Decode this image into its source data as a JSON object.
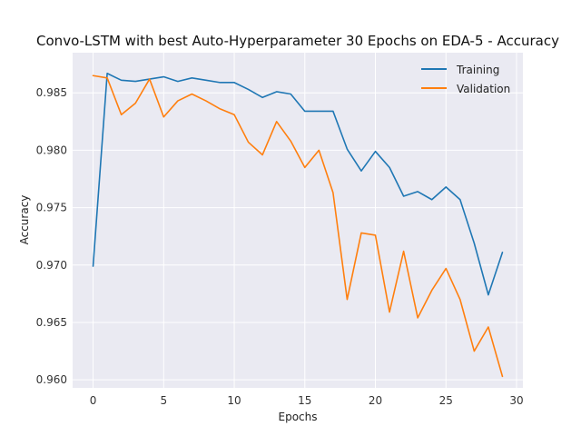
{
  "chart_data": {
    "type": "line",
    "title": "Convo-LSTM with best Auto-Hyperparameter 30 Epochs on EDA-5 - Accuracy",
    "xlabel": "Epochs",
    "ylabel": "Accuracy",
    "xlim": [
      -1.45,
      30.45
    ],
    "ylim": [
      0.9593,
      0.9885
    ],
    "xticks": [
      0,
      5,
      10,
      15,
      20,
      25,
      30
    ],
    "xtick_labels": [
      "0",
      "5",
      "10",
      "15",
      "20",
      "25",
      "30"
    ],
    "yticks": [
      0.96,
      0.965,
      0.97,
      0.975,
      0.98,
      0.985
    ],
    "ytick_labels": [
      "0.960",
      "0.965",
      "0.970",
      "0.975",
      "0.980",
      "0.985"
    ],
    "grid": true,
    "legend_position": "top-right",
    "x": [
      0,
      1,
      2,
      3,
      4,
      5,
      6,
      7,
      8,
      9,
      10,
      11,
      12,
      13,
      14,
      15,
      16,
      17,
      18,
      19,
      20,
      21,
      22,
      23,
      24,
      25,
      26,
      27,
      28,
      29
    ],
    "series": [
      {
        "name": "Training",
        "color": "#1f77b4",
        "values": [
          0.9699,
          0.9867,
          0.9861,
          0.986,
          0.9862,
          0.9864,
          0.986,
          0.9863,
          0.9861,
          0.9859,
          0.9859,
          0.9853,
          0.9846,
          0.9851,
          0.9849,
          0.9834,
          0.9834,
          0.9834,
          0.9801,
          0.9782,
          0.9799,
          0.9785,
          0.976,
          0.9764,
          0.9757,
          0.9768,
          0.9757,
          0.9719,
          0.9674,
          0.9711
        ]
      },
      {
        "name": "Validation",
        "color": "#ff7f0e",
        "values": [
          0.9865,
          0.9863,
          0.9831,
          0.9841,
          0.9862,
          0.9829,
          0.9843,
          0.9849,
          0.9843,
          0.9836,
          0.9831,
          0.9807,
          0.9796,
          0.9825,
          0.9808,
          0.9785,
          0.98,
          0.9763,
          0.967,
          0.9728,
          0.9726,
          0.9659,
          0.9712,
          0.9654,
          0.9678,
          0.9697,
          0.967,
          0.9625,
          0.9646,
          0.9603
        ]
      }
    ]
  }
}
